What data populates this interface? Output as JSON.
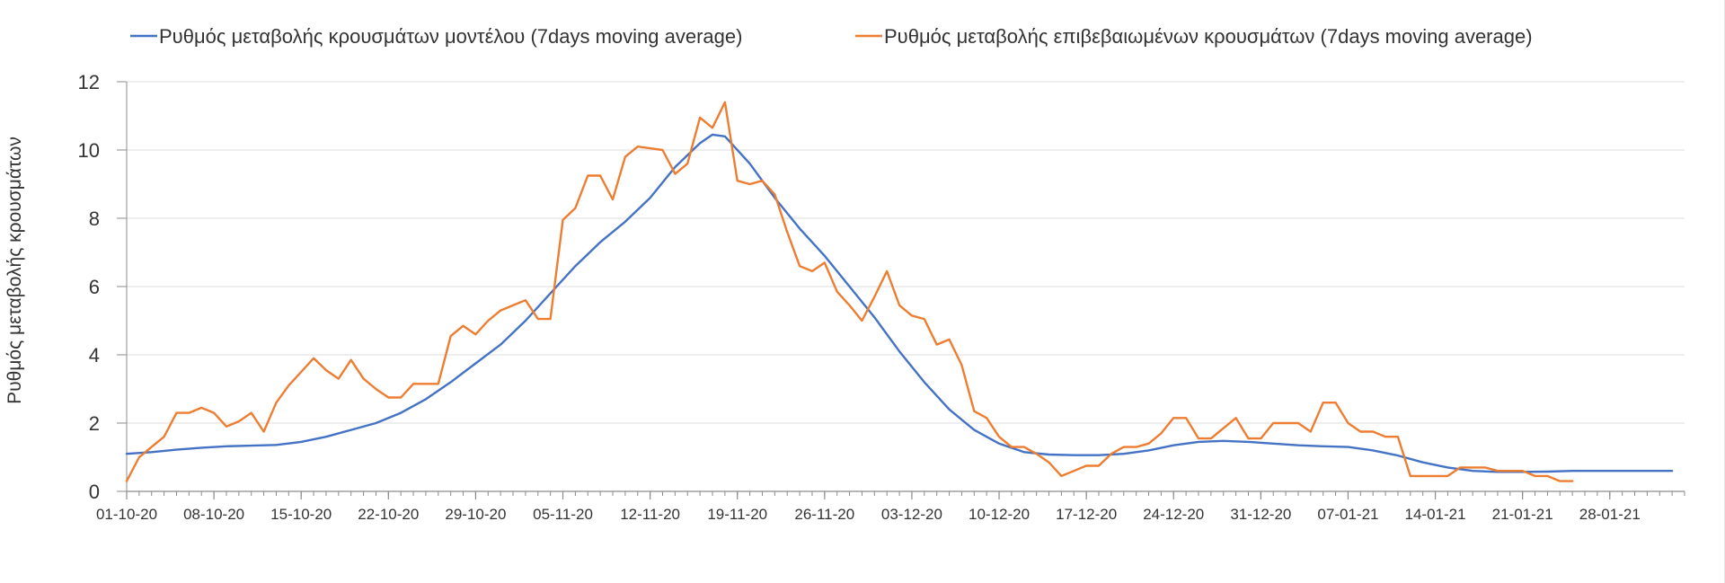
{
  "chart_data": {
    "type": "line",
    "title": "",
    "xlabel": "",
    "ylabel": "Ρυθμός μεταβολής κρουσμάτων",
    "ylim": [
      0,
      12
    ],
    "yticks": [
      0,
      2,
      4,
      6,
      8,
      10,
      12
    ],
    "xlim_days": [
      0,
      125
    ],
    "xticks": [
      {
        "day": 0,
        "label": "01-10-20"
      },
      {
        "day": 7,
        "label": "08-10-20"
      },
      {
        "day": 14,
        "label": "15-10-20"
      },
      {
        "day": 21,
        "label": "22-10-20"
      },
      {
        "day": 28,
        "label": "29-10-20"
      },
      {
        "day": 35,
        "label": "05-11-20"
      },
      {
        "day": 42,
        "label": "12-11-20"
      },
      {
        "day": 49,
        "label": "19-11-20"
      },
      {
        "day": 56,
        "label": "26-11-20"
      },
      {
        "day": 63,
        "label": "03-12-20"
      },
      {
        "day": 70,
        "label": "10-12-20"
      },
      {
        "day": 77,
        "label": "17-12-20"
      },
      {
        "day": 84,
        "label": "24-12-20"
      },
      {
        "day": 91,
        "label": "31-12-20"
      },
      {
        "day": 98,
        "label": "07-01-21"
      },
      {
        "day": 105,
        "label": "14-01-21"
      },
      {
        "day": 112,
        "label": "21-01-21"
      },
      {
        "day": 119,
        "label": "28-01-21"
      }
    ],
    "grid": true,
    "legend_position": "top",
    "series": [
      {
        "name": "Ρυθμός μεταβολής κρουσμάτων μοντέλου (7days moving average)",
        "color": "#4472c4",
        "x": [
          0,
          2,
          4,
          6,
          8,
          10,
          12,
          14,
          16,
          18,
          20,
          22,
          24,
          26,
          28,
          30,
          32,
          34,
          36,
          38,
          40,
          42,
          44,
          46,
          47,
          48,
          50,
          52,
          54,
          56,
          58,
          60,
          62,
          64,
          66,
          68,
          70,
          72,
          74,
          76,
          78,
          80,
          82,
          84,
          86,
          88,
          90,
          92,
          94,
          96,
          98,
          100,
          102,
          104,
          106,
          108,
          110,
          112,
          114,
          116,
          118,
          120,
          122,
          124
        ],
        "values": [
          1.1,
          1.15,
          1.22,
          1.28,
          1.32,
          1.34,
          1.36,
          1.45,
          1.6,
          1.8,
          2.0,
          2.3,
          2.7,
          3.2,
          3.75,
          4.3,
          5.0,
          5.8,
          6.6,
          7.3,
          7.9,
          8.6,
          9.5,
          10.2,
          10.45,
          10.4,
          9.6,
          8.6,
          7.7,
          6.9,
          6.0,
          5.1,
          4.1,
          3.2,
          2.4,
          1.8,
          1.4,
          1.15,
          1.08,
          1.06,
          1.06,
          1.1,
          1.2,
          1.35,
          1.45,
          1.48,
          1.45,
          1.4,
          1.35,
          1.32,
          1.3,
          1.2,
          1.05,
          0.85,
          0.7,
          0.6,
          0.57,
          0.57,
          0.58,
          0.6,
          0.6,
          0.6,
          0.6,
          0.6
        ]
      },
      {
        "name": "Ρυθμός μεταβολής επιβεβαιωμένων κρουσμάτων (7days moving average)",
        "color": "#ed7d31",
        "x": [
          0,
          1,
          2,
          3,
          4,
          5,
          6,
          7,
          8,
          9,
          10,
          11,
          12,
          13,
          14,
          15,
          16,
          17,
          18,
          19,
          20,
          21,
          22,
          23,
          24,
          25,
          26,
          27,
          28,
          29,
          30,
          31,
          32,
          33,
          34,
          35,
          36,
          37,
          38,
          39,
          40,
          41,
          42,
          43,
          44,
          45,
          46,
          47,
          48,
          49,
          50,
          51,
          52,
          53,
          54,
          55,
          56,
          57,
          58,
          59,
          60,
          61,
          62,
          63,
          64,
          65,
          66,
          67,
          68,
          69,
          70,
          71,
          72,
          73,
          74,
          75,
          76,
          77,
          78,
          79,
          80,
          81,
          82,
          83,
          84,
          85,
          86,
          87,
          88,
          89,
          90,
          91,
          92,
          93,
          94,
          95,
          96,
          97,
          98,
          99,
          100,
          101,
          102,
          103,
          104,
          105,
          106,
          107,
          108,
          109,
          110,
          111,
          112,
          113,
          114,
          115,
          116
        ],
        "values": [
          0.3,
          1.0,
          1.3,
          1.6,
          2.3,
          2.3,
          2.45,
          2.3,
          1.9,
          2.05,
          2.3,
          1.75,
          2.6,
          3.1,
          3.5,
          3.9,
          3.55,
          3.3,
          3.85,
          3.3,
          3.0,
          2.75,
          2.75,
          3.15,
          3.15,
          3.15,
          4.55,
          4.85,
          4.6,
          5.0,
          5.3,
          5.45,
          5.6,
          5.05,
          5.05,
          7.95,
          8.3,
          9.25,
          9.25,
          8.55,
          9.8,
          10.1,
          10.05,
          10.0,
          9.3,
          9.6,
          10.95,
          10.65,
          11.4,
          9.1,
          9.0,
          9.1,
          8.7,
          7.6,
          6.6,
          6.45,
          6.7,
          5.85,
          5.45,
          5.0,
          5.7,
          6.45,
          5.45,
          5.15,
          5.05,
          4.3,
          4.45,
          3.7,
          2.35,
          2.15,
          1.6,
          1.3,
          1.3,
          1.1,
          0.85,
          0.45,
          0.6,
          0.75,
          0.75,
          1.1,
          1.3,
          1.3,
          1.4,
          1.7,
          2.15,
          2.15,
          1.55,
          1.55,
          1.85,
          2.15,
          1.55,
          1.55,
          2.0,
          2.0,
          2.0,
          1.75,
          2.6,
          2.6,
          2.0,
          1.75,
          1.75,
          1.6,
          1.6,
          0.45,
          0.45,
          0.45,
          0.45,
          0.7,
          0.7,
          0.7,
          0.6,
          0.6,
          0.6,
          0.45,
          0.45,
          0.3,
          0.3
        ]
      }
    ]
  }
}
